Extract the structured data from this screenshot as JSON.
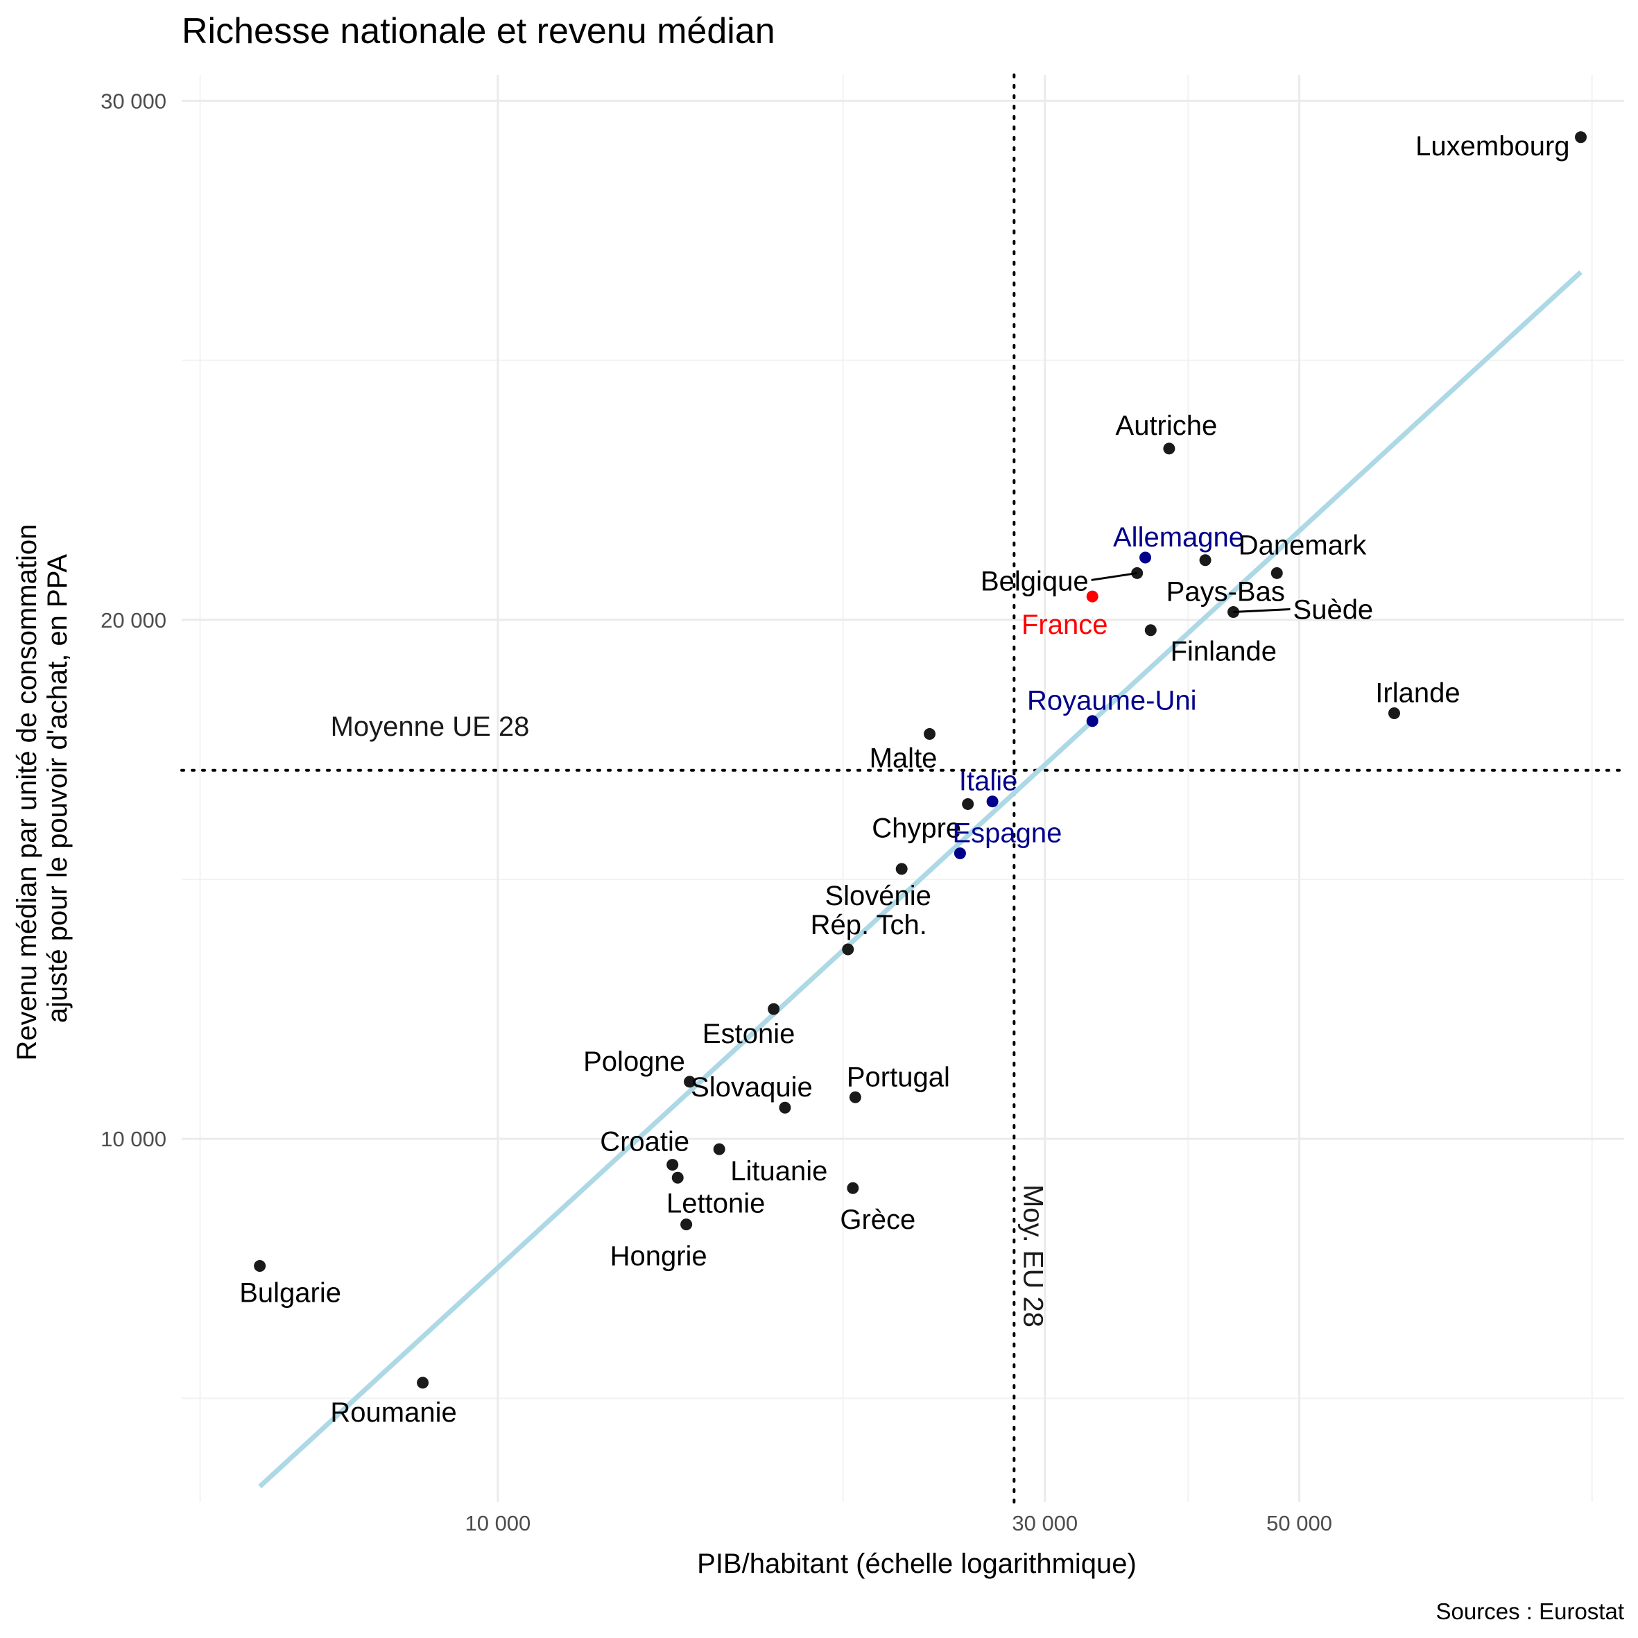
{
  "chart_data": {
    "type": "scatter",
    "title": "Richesse nationale et revenu médian",
    "xlabel": "PIB/habitant (échelle logarithmique)",
    "ylabel_lines": [
      "Revenu médian par unité de consommation",
      "ajusté pour le pouvoir d'achat, en PPA"
    ],
    "caption": "Sources : Eurostat",
    "x_scale": "log",
    "xlim": [
      5300,
      96000
    ],
    "ylim": [
      3000,
      30500
    ],
    "x_ticks": [
      {
        "value": 10000,
        "label": "10 000"
      },
      {
        "value": 30000,
        "label": "30 000"
      },
      {
        "value": 50000,
        "label": "50 000"
      }
    ],
    "x_minor_gridlines": [
      5500,
      20000,
      40000,
      90000
    ],
    "y_ticks": [
      {
        "value": 10000,
        "label": "10 000"
      },
      {
        "value": 20000,
        "label": "20 000"
      },
      {
        "value": 30000,
        "label": "30 000"
      }
    ],
    "y_minor_gridlines": [
      5000,
      15000,
      25000
    ],
    "grid": true,
    "legend": "none",
    "colors": {
      "default": "#1a1a1a",
      "highlight": "#00008b",
      "france": "#ff0000",
      "trend": "#add8e6"
    },
    "reference_lines": [
      {
        "axis": "y",
        "value": 17100,
        "style": "dotted",
        "label": "Moyenne UE 28"
      },
      {
        "axis": "x",
        "value": 28200,
        "style": "dotted",
        "label": "Moy. EU 28"
      }
    ],
    "trend_line": {
      "x": [
        6200,
        88000
      ],
      "y": [
        3300,
        26700
      ]
    },
    "points": [
      {
        "label": "Luxembourg",
        "x": 88000,
        "y": 29300,
        "group": "default"
      },
      {
        "label": "Autriche",
        "x": 38500,
        "y": 23300,
        "group": "default"
      },
      {
        "label": "Allemagne",
        "x": 36700,
        "y": 21200,
        "group": "highlight"
      },
      {
        "label": "Danemark",
        "x": 41400,
        "y": 21150,
        "group": "default"
      },
      {
        "label": "Belgique",
        "x": 36100,
        "y": 20900,
        "group": "default"
      },
      {
        "label": "Pays-Bas",
        "x": 47800,
        "y": 20900,
        "group": "default"
      },
      {
        "label": "France",
        "x": 33000,
        "y": 20450,
        "group": "france"
      },
      {
        "label": "Suède",
        "x": 43800,
        "y": 20150,
        "group": "default"
      },
      {
        "label": "Finlande",
        "x": 37100,
        "y": 19800,
        "group": "default"
      },
      {
        "label": "Irlande",
        "x": 60500,
        "y": 18200,
        "group": "default"
      },
      {
        "label": "Royaume-Uni",
        "x": 33000,
        "y": 18050,
        "group": "highlight"
      },
      {
        "label": "Malte",
        "x": 23800,
        "y": 17800,
        "group": "default"
      },
      {
        "label": "Chypre",
        "x": 25700,
        "y": 16450,
        "group": "default"
      },
      {
        "label": "Italie",
        "x": 27000,
        "y": 16500,
        "group": "highlight"
      },
      {
        "label": "Espagne",
        "x": 25300,
        "y": 15500,
        "group": "highlight"
      },
      {
        "label": "Slovénie",
        "x": 22500,
        "y": 15200,
        "group": "default"
      },
      {
        "label": "Rép. Tch.",
        "x": 20200,
        "y": 13650,
        "group": "default"
      },
      {
        "label": "Estonie",
        "x": 17400,
        "y": 12500,
        "group": "default"
      },
      {
        "label": "Pologne",
        "x": 14700,
        "y": 11100,
        "group": "default"
      },
      {
        "label": "Portugal",
        "x": 20500,
        "y": 10800,
        "group": "default"
      },
      {
        "label": "Slovaquie",
        "x": 17800,
        "y": 10600,
        "group": "default"
      },
      {
        "label": "Lituanie",
        "x": 15600,
        "y": 9800,
        "group": "default"
      },
      {
        "label": "Croatie",
        "x": 14200,
        "y": 9500,
        "group": "default"
      },
      {
        "label": "Lettonie",
        "x": 14350,
        "y": 9250,
        "group": "default"
      },
      {
        "label": "Grèce",
        "x": 20400,
        "y": 9050,
        "group": "default"
      },
      {
        "label": "Hongrie",
        "x": 14600,
        "y": 8350,
        "group": "default"
      },
      {
        "label": "Bulgarie",
        "x": 6200,
        "y": 7550,
        "group": "default"
      },
      {
        "label": "Roumanie",
        "x": 8600,
        "y": 5300,
        "group": "default"
      }
    ]
  }
}
